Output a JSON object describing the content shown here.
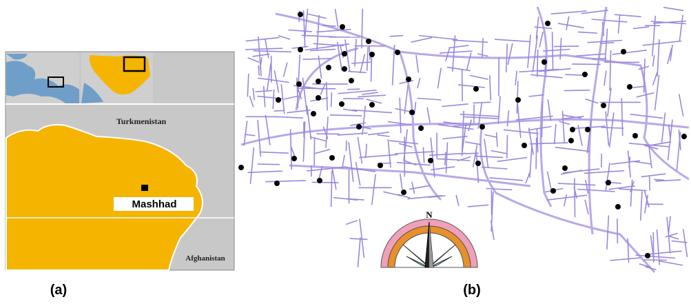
{
  "panel_a": {
    "labels": {
      "turkmenistan": "Turkmenistan",
      "mashhad": "Mashhad",
      "afghanistan": "Afghanistan"
    },
    "caption": "(a)"
  },
  "panel_b": {
    "compass_north": "N",
    "caption": "(b)"
  }
}
